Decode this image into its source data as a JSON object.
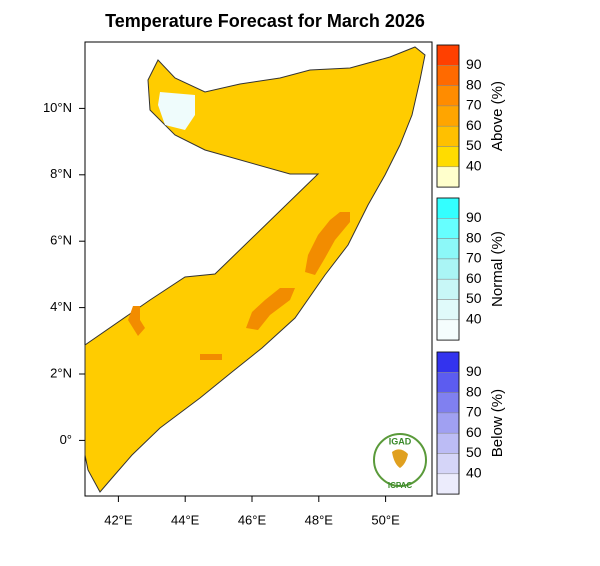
{
  "title": "Temperature Forecast for March 2026",
  "map": {
    "lon_ticks": [
      {
        "value": 42,
        "label": "42°E"
      },
      {
        "value": 44,
        "label": "44°E"
      },
      {
        "value": 46,
        "label": "46°E"
      },
      {
        "value": 48,
        "label": "48°E"
      },
      {
        "value": 50,
        "label": "50°E"
      }
    ],
    "lat_ticks": [
      {
        "value": 10,
        "label": "10°N"
      },
      {
        "value": 8,
        "label": "8°N"
      },
      {
        "value": 6,
        "label": "6°N"
      },
      {
        "value": 4,
        "label": "4°N"
      },
      {
        "value": 2,
        "label": "2°N"
      },
      {
        "value": 0,
        "label": "0°"
      }
    ]
  },
  "legend": [
    {
      "title": "Above (%)",
      "labels": [
        90,
        80,
        70,
        60,
        50,
        40
      ],
      "colors": [
        "#ff4000",
        "#ff6a00",
        "#ff8c00",
        "#ffa500",
        "#ffc000",
        "#ffdc00",
        "#ffffcc"
      ]
    },
    {
      "title": "Normal (%)",
      "labels": [
        90,
        80,
        70,
        60,
        50,
        40
      ],
      "colors": [
        "#33ffff",
        "#66ffff",
        "#8cf8f8",
        "#aaf5f5",
        "#c8f7f7",
        "#e0fafa",
        "#f5fdfd"
      ]
    },
    {
      "title": "Below (%)",
      "labels": [
        90,
        80,
        70,
        60,
        50,
        40
      ],
      "colors": [
        "#3333ee",
        "#5c5cf0",
        "#8080f0",
        "#a0a0f2",
        "#bcbcf5",
        "#d5d5f8",
        "#ececfc"
      ]
    }
  ],
  "logo": {
    "top": "IGAD",
    "bottom": "ICPAC"
  }
}
